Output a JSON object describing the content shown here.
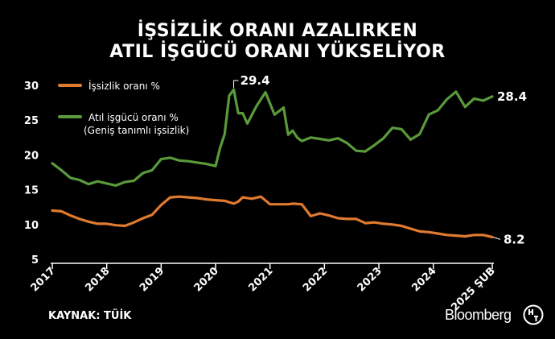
{
  "title_line1": "İŞSİZLİK ORANI AZALIRKEN",
  "title_line2": "ATIL İŞGÜCÜ ORANI YÜKSELİYOR",
  "source": "KAYNAK: TÜİK",
  "brand": "Bloomberg",
  "colors": {
    "unemployment": "#e07a2f",
    "slack": "#5a9a3a",
    "background": "#000000",
    "text": "#ffffff"
  },
  "chart_data": {
    "type": "line",
    "title": "İŞSİZLİK ORANI AZALIRKEN ATIL İŞGÜCÜ ORANI YÜKSELİYOR",
    "xlabel": "",
    "ylabel": "",
    "ylim": [
      5,
      30
    ],
    "yticks": [
      5,
      10,
      15,
      20,
      25,
      30
    ],
    "xlim": [
      "2017-01",
      "2025-02"
    ],
    "xticks": [
      "2017",
      "2018",
      "2019",
      "2020",
      "2021",
      "2022",
      "2023",
      "2024",
      "2025 ŞUB"
    ],
    "grid": false,
    "legend_position": "top-left",
    "series": [
      {
        "name": "İşsizlik oranı %",
        "color": "#e07a2f",
        "x": [
          "2017-01",
          "2017-03",
          "2017-05",
          "2017-07",
          "2017-09",
          "2017-11",
          "2018-01",
          "2018-03",
          "2018-05",
          "2018-07",
          "2018-09",
          "2018-11",
          "2019-01",
          "2019-03",
          "2019-05",
          "2019-07",
          "2019-09",
          "2019-11",
          "2020-01",
          "2020-03",
          "2020-05",
          "2020-06",
          "2020-07",
          "2020-09",
          "2020-11",
          "2021-01",
          "2021-03",
          "2021-05",
          "2021-06",
          "2021-08",
          "2021-10",
          "2021-12",
          "2022-02",
          "2022-04",
          "2022-06",
          "2022-08",
          "2022-10",
          "2022-12",
          "2023-02",
          "2023-04",
          "2023-06",
          "2023-08",
          "2023-10",
          "2023-12",
          "2024-02",
          "2024-04",
          "2024-06",
          "2024-08",
          "2024-10",
          "2024-12",
          "2025-02"
        ],
        "values": [
          12.0,
          11.9,
          11.3,
          10.8,
          10.4,
          10.1,
          10.1,
          9.9,
          9.8,
          10.3,
          10.9,
          11.4,
          12.8,
          13.9,
          14.0,
          13.9,
          13.8,
          13.6,
          13.5,
          13.4,
          13.0,
          13.3,
          13.9,
          13.7,
          14.0,
          12.9,
          12.9,
          12.9,
          13.0,
          12.9,
          11.2,
          11.6,
          11.3,
          10.9,
          10.8,
          10.8,
          10.2,
          10.3,
          10.1,
          10.0,
          9.8,
          9.4,
          9.0,
          8.9,
          8.7,
          8.5,
          8.4,
          8.3,
          8.5,
          8.5,
          8.2
        ]
      },
      {
        "name": "Atıl işgücü oranı % (Geniş tanımlı işsizlik)",
        "color": "#5a9a3a",
        "x": [
          "2017-01",
          "2017-03",
          "2017-05",
          "2017-07",
          "2017-09",
          "2017-11",
          "2018-01",
          "2018-03",
          "2018-05",
          "2018-07",
          "2018-09",
          "2018-11",
          "2019-01",
          "2019-03",
          "2019-05",
          "2019-07",
          "2019-09",
          "2019-11",
          "2020-01",
          "2020-02",
          "2020-03",
          "2020-04",
          "2020-05",
          "2020-06",
          "2020-07",
          "2020-08",
          "2020-10",
          "2020-12",
          "2021-02",
          "2021-04",
          "2021-05",
          "2021-06",
          "2021-07",
          "2021-08",
          "2021-10",
          "2021-12",
          "2022-02",
          "2022-04",
          "2022-06",
          "2022-08",
          "2022-10",
          "2022-12",
          "2023-02",
          "2023-04",
          "2023-06",
          "2023-08",
          "2023-10",
          "2023-12",
          "2024-02",
          "2024-04",
          "2024-06",
          "2024-08",
          "2024-10",
          "2024-12",
          "2025-02"
        ],
        "values": [
          18.8,
          17.8,
          16.7,
          16.4,
          15.8,
          16.2,
          15.9,
          15.6,
          16.1,
          16.3,
          17.4,
          17.8,
          19.4,
          19.6,
          19.2,
          19.1,
          18.9,
          18.7,
          18.4,
          21.0,
          23.0,
          28.5,
          29.4,
          26.0,
          26.0,
          24.5,
          27.0,
          29.0,
          25.8,
          26.8,
          22.9,
          23.5,
          22.5,
          22.0,
          22.5,
          22.3,
          22.1,
          22.4,
          21.7,
          20.6,
          20.5,
          21.4,
          22.4,
          23.9,
          23.7,
          22.2,
          23.0,
          25.8,
          26.4,
          28.0,
          29.1,
          26.9,
          28.1,
          27.8,
          28.4
        ]
      }
    ],
    "annotations": [
      {
        "text": "29.4",
        "target": "Atıl işgücü oranı % (Geniş tanımlı işsizlik)",
        "x": "2020-05",
        "y": 29.4
      },
      {
        "text": "28.4",
        "target": "Atıl işgücü oranı % (Geniş tanımlı işsizlik)",
        "x": "2025-02",
        "y": 28.4
      },
      {
        "text": "8.2",
        "target": "İşsizlik oranı %",
        "x": "2025-02",
        "y": 8.2
      }
    ],
    "legend": {
      "unemployment_label": "İşsizlik oranı %",
      "slack_label_line1": "Atıl işgücü oranı %",
      "slack_label_line2": "(Geniş tanımlı işsizlik)"
    }
  }
}
